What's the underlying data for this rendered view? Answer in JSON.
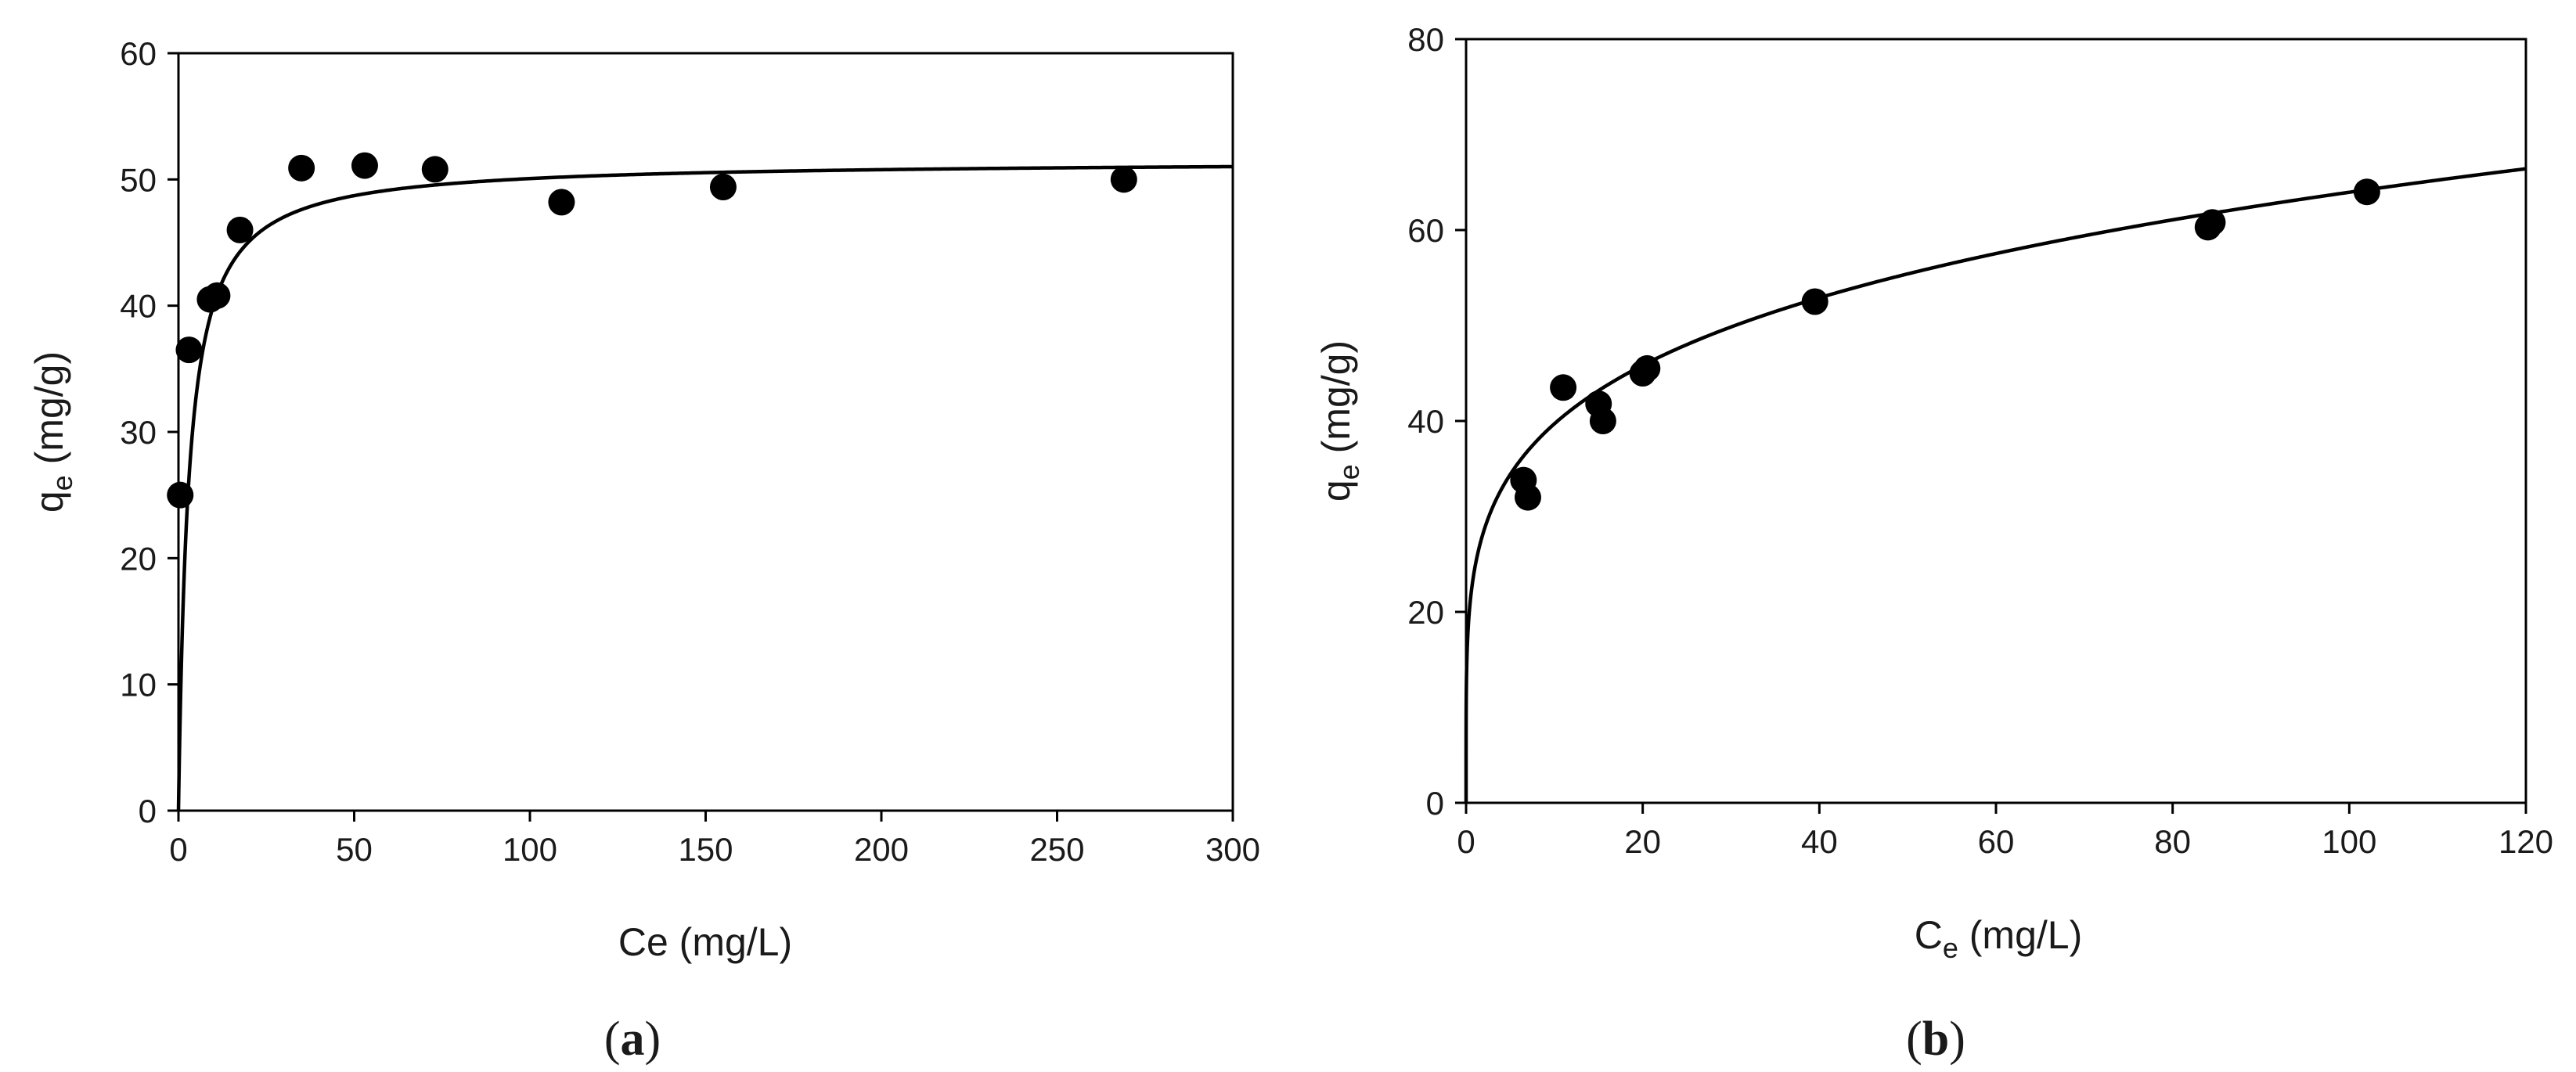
{
  "chart_data": [
    {
      "panel": "a",
      "type": "scatter",
      "title": "",
      "xlabel": "Ce (mg/L)",
      "ylabel": {
        "base": "q",
        "sub": "e",
        "rest": " (mg/g)"
      },
      "xlim": [
        0,
        300
      ],
      "ylim": [
        0,
        60
      ],
      "xticks": [
        0,
        50,
        100,
        150,
        200,
        250,
        300
      ],
      "yticks": [
        0,
        10,
        20,
        30,
        40,
        50,
        60
      ],
      "grid": false,
      "legend": "none",
      "series": [
        {
          "kind": "points",
          "x": [
            0.5,
            3,
            9,
            11,
            17.5,
            35,
            53,
            73,
            109,
            155,
            269
          ],
          "y": [
            25,
            36.5,
            40.5,
            40.8,
            46,
            50.9,
            51.1,
            50.8,
            48.2,
            49.4,
            50
          ]
        },
        {
          "kind": "fit-line",
          "model": "langmuir",
          "qmax": 51.5,
          "K": 0.35
        }
      ],
      "caption": {
        "open": "(",
        "letter": "a",
        "close": ")"
      }
    },
    {
      "panel": "b",
      "type": "scatter",
      "title": "",
      "xlabel": {
        "base": "C",
        "sub": "e",
        "rest": " (mg/L)"
      },
      "ylabel": {
        "base": "q",
        "sub": "e",
        "rest": " (mg/g)"
      },
      "xlim": [
        0,
        120
      ],
      "ylim": [
        0,
        80
      ],
      "xticks": [
        0,
        20,
        40,
        60,
        80,
        100,
        120
      ],
      "yticks": [
        0,
        20,
        40,
        60,
        80
      ],
      "grid": false,
      "legend": "none",
      "series": [
        {
          "kind": "points",
          "x": [
            6.5,
            7,
            11,
            15,
            15.5,
            20,
            20.5,
            39.5,
            84,
            84.5,
            102
          ],
          "y": [
            33.8,
            32,
            43.5,
            41.8,
            40,
            45,
            45.5,
            52.5,
            60.3,
            60.8,
            64
          ]
        },
        {
          "kind": "fit-line",
          "model": "freundlich",
          "Kf": 24.65,
          "n": 4.83
        }
      ],
      "caption": {
        "open": "(",
        "letter": "b",
        "close": ")"
      }
    }
  ],
  "colors": {
    "marker": "#000000",
    "line": "#000000",
    "axis": "#000000",
    "text": "#1a1a1a"
  }
}
